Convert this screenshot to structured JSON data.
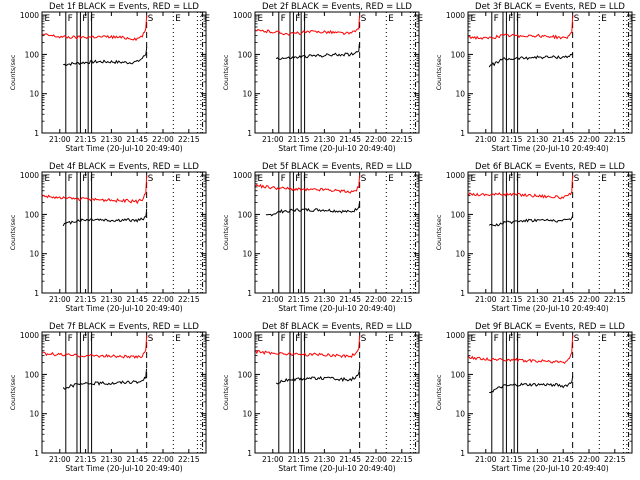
{
  "figure": {
    "xtick_labels": [
      "21:00",
      "21:15",
      "21:30",
      "21:45",
      "22:00",
      "22:15"
    ],
    "xlabel": "Start Time (20-Jul-10 20:49:40)",
    "ylabel": "Counts/sec",
    "ytick_labels": [
      "1",
      "10",
      "100",
      "1000"
    ],
    "colors": {
      "events": "#000000",
      "lld": "#ff0000",
      "axes": "#000000",
      "background": "#ffffff"
    },
    "markers": {
      "E": "E",
      "F": "F",
      "S": "S"
    }
  },
  "chart_data": [
    {
      "type": "line",
      "title": "Det 1f BLACK = Events, RED = LLD",
      "ylog": true,
      "xlim": [
        "20:49:40",
        "22:25:00"
      ],
      "ylim": [
        1,
        1200
      ],
      "series": [
        {
          "name": "Events",
          "color": "#000000",
          "x": [
            "21:02:00",
            "21:10",
            "21:20",
            "21:30",
            "21:40",
            "21:45",
            "21:48",
            "21:50",
            "21:50:30"
          ],
          "values": [
            55,
            60,
            65,
            65,
            62,
            65,
            80,
            100,
            150
          ]
        },
        {
          "name": "LLD",
          "color": "#ff0000",
          "x": [
            "20:50",
            "21:00",
            "21:10",
            "21:20",
            "21:30",
            "21:40",
            "21:45",
            "21:48",
            "21:50",
            "21:50:30"
          ],
          "values": [
            320,
            280,
            270,
            280,
            280,
            260,
            250,
            300,
            420,
            1000
          ]
        }
      ]
    },
    {
      "type": "line",
      "title": "Det 2f BLACK = Events, RED = LLD",
      "ylog": true,
      "xlim": [
        "20:49:40",
        "22:25:00"
      ],
      "ylim": [
        1,
        1200
      ],
      "series": [
        {
          "name": "Events",
          "color": "#000000",
          "x": [
            "21:02:00",
            "21:10",
            "21:20",
            "21:30",
            "21:40",
            "21:45",
            "21:48",
            "21:50",
            "21:50:30"
          ],
          "values": [
            80,
            80,
            90,
            95,
            100,
            100,
            110,
            130,
            200
          ]
        },
        {
          "name": "LLD",
          "color": "#ff0000",
          "x": [
            "20:50",
            "21:00",
            "21:10",
            "21:20",
            "21:30",
            "21:40",
            "21:45",
            "21:48",
            "21:50",
            "21:50:30"
          ],
          "values": [
            400,
            380,
            330,
            370,
            380,
            350,
            340,
            380,
            480,
            1000
          ]
        }
      ]
    },
    {
      "type": "line",
      "title": "Det 3f BLACK = Events, RED = LLD",
      "ylog": true,
      "xlim": [
        "20:49:40",
        "22:25:00"
      ],
      "ylim": [
        1,
        1200
      ],
      "series": [
        {
          "name": "Events",
          "color": "#000000",
          "x": [
            "21:02:00",
            "21:10",
            "21:20",
            "21:30",
            "21:40",
            "21:45",
            "21:48",
            "21:50",
            "21:50:30"
          ],
          "values": [
            50,
            75,
            80,
            85,
            85,
            85,
            90,
            95,
            110
          ]
        },
        {
          "name": "LLD",
          "color": "#ff0000",
          "x": [
            "20:50",
            "21:00",
            "21:10",
            "21:20",
            "21:30",
            "21:40",
            "21:45",
            "21:48",
            "21:50",
            "21:50:30"
          ],
          "values": [
            280,
            250,
            300,
            300,
            300,
            280,
            260,
            280,
            380,
            1000
          ]
        }
      ]
    },
    {
      "type": "line",
      "title": "Det 4f BLACK = Events, RED = LLD",
      "ylog": true,
      "xlim": [
        "20:49:40",
        "22:25:00"
      ],
      "ylim": [
        1,
        1200
      ],
      "series": [
        {
          "name": "Events",
          "color": "#000000",
          "x": [
            "21:02:00",
            "21:10",
            "21:20",
            "21:30",
            "21:40",
            "21:45",
            "21:48",
            "21:50",
            "21:50:30"
          ],
          "values": [
            55,
            70,
            75,
            70,
            72,
            70,
            75,
            90,
            140
          ]
        },
        {
          "name": "LLD",
          "color": "#ff0000",
          "x": [
            "20:50",
            "21:00",
            "21:10",
            "21:20",
            "21:30",
            "21:40",
            "21:45",
            "21:48",
            "21:50",
            "21:50:30"
          ],
          "values": [
            300,
            260,
            250,
            240,
            230,
            220,
            210,
            240,
            350,
            1000
          ]
        }
      ]
    },
    {
      "type": "line",
      "title": "Det 5f BLACK = Events, RED = LLD",
      "ylog": true,
      "xlim": [
        "20:49:40",
        "22:25:00"
      ],
      "ylim": [
        1,
        1200
      ],
      "series": [
        {
          "name": "Events",
          "color": "#000000",
          "x": [
            "20:56:00",
            "21:05",
            "21:15",
            "21:30",
            "21:40",
            "21:45",
            "21:48",
            "21:50",
            "21:50:30"
          ],
          "values": [
            90,
            120,
            130,
            130,
            120,
            115,
            130,
            160,
            220
          ]
        },
        {
          "name": "LLD",
          "color": "#ff0000",
          "x": [
            "20:50",
            "21:00",
            "21:10",
            "21:20",
            "21:30",
            "21:40",
            "21:45",
            "21:48",
            "21:50",
            "21:50:30"
          ],
          "values": [
            550,
            480,
            450,
            420,
            430,
            390,
            370,
            400,
            500,
            1000
          ]
        }
      ]
    },
    {
      "type": "line",
      "title": "Det 6f BLACK = Events, RED = LLD",
      "ylog": true,
      "xlim": [
        "20:49:40",
        "22:25:00"
      ],
      "ylim": [
        1,
        1200
      ],
      "series": [
        {
          "name": "Events",
          "color": "#000000",
          "x": [
            "21:02:00",
            "21:10",
            "21:20",
            "21:30",
            "21:40",
            "21:45",
            "21:48",
            "21:50",
            "21:50:30"
          ],
          "values": [
            50,
            60,
            70,
            72,
            70,
            68,
            75,
            80,
            95
          ]
        },
        {
          "name": "LLD",
          "color": "#ff0000",
          "x": [
            "20:50",
            "21:00",
            "21:10",
            "21:20",
            "21:30",
            "21:40",
            "21:45",
            "21:48",
            "21:50",
            "21:50:30"
          ],
          "values": [
            330,
            320,
            330,
            320,
            300,
            280,
            270,
            290,
            380,
            1000
          ]
        }
      ]
    },
    {
      "type": "line",
      "title": "Det 7f BLACK = Events, RED = LLD",
      "ylog": true,
      "xlim": [
        "20:49:40",
        "22:25:00"
      ],
      "ylim": [
        1,
        1200
      ],
      "series": [
        {
          "name": "Events",
          "color": "#000000",
          "x": [
            "21:02:00",
            "21:10",
            "21:20",
            "21:30",
            "21:40",
            "21:45",
            "21:48",
            "21:50",
            "21:50:30"
          ],
          "values": [
            45,
            55,
            60,
            60,
            65,
            62,
            70,
            85,
            140
          ]
        },
        {
          "name": "LLD",
          "color": "#ff0000",
          "x": [
            "20:50",
            "21:00",
            "21:10",
            "21:20",
            "21:30",
            "21:40",
            "21:45",
            "21:48",
            "21:50",
            "21:50:30"
          ],
          "values": [
            340,
            320,
            300,
            300,
            290,
            280,
            270,
            300,
            420,
            1000
          ]
        }
      ]
    },
    {
      "type": "line",
      "title": "Det 8f BLACK = Events, RED = LLD",
      "ylog": true,
      "xlim": [
        "20:49:40",
        "22:25:00"
      ],
      "ylim": [
        1,
        1200
      ],
      "series": [
        {
          "name": "Events",
          "color": "#000000",
          "x": [
            "21:02:00",
            "21:10",
            "21:20",
            "21:30",
            "21:40",
            "21:45",
            "21:48",
            "21:50",
            "21:50:30"
          ],
          "values": [
            60,
            75,
            80,
            80,
            75,
            75,
            80,
            100,
            150
          ]
        },
        {
          "name": "LLD",
          "color": "#ff0000",
          "x": [
            "20:50",
            "21:00",
            "21:10",
            "21:20",
            "21:30",
            "21:40",
            "21:45",
            "21:48",
            "21:50",
            "21:50:30"
          ],
          "values": [
            380,
            350,
            330,
            320,
            320,
            300,
            290,
            330,
            450,
            1000
          ]
        }
      ]
    },
    {
      "type": "line",
      "title": "Det 9f BLACK = Events, RED = LLD",
      "ylog": true,
      "xlim": [
        "20:49:40",
        "22:25:00"
      ],
      "ylim": [
        1,
        1200
      ],
      "series": [
        {
          "name": "Events",
          "color": "#000000",
          "x": [
            "21:02:00",
            "21:10",
            "21:20",
            "21:30",
            "21:40",
            "21:45",
            "21:48",
            "21:50",
            "21:50:30"
          ],
          "values": [
            35,
            50,
            55,
            55,
            55,
            50,
            55,
            65,
            90
          ]
        },
        {
          "name": "LLD",
          "color": "#ff0000",
          "x": [
            "20:50",
            "21:00",
            "21:10",
            "21:20",
            "21:30",
            "21:40",
            "21:45",
            "21:48",
            "21:50",
            "21:50:30"
          ],
          "values": [
            280,
            240,
            240,
            230,
            220,
            210,
            200,
            230,
            350,
            1000
          ]
        }
      ]
    }
  ]
}
